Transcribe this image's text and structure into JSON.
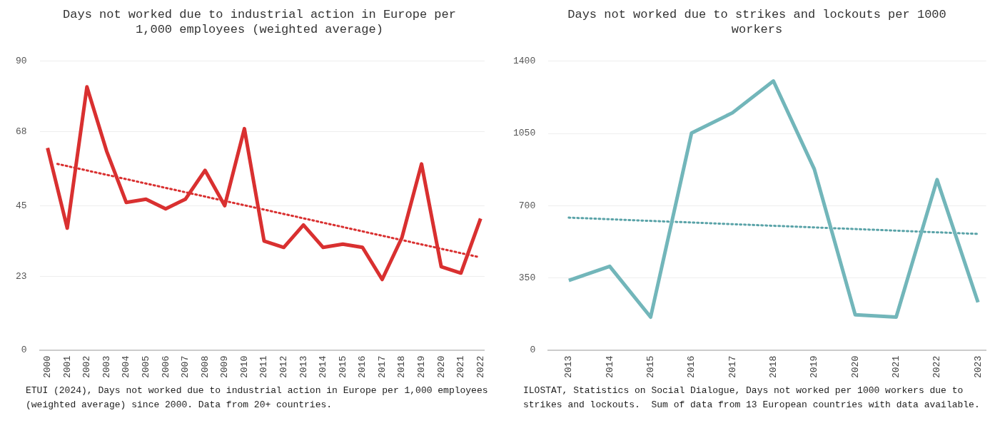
{
  "chart_data": [
    {
      "type": "line",
      "title": "Days not worked due to industrial action in Europe per 1,000 employees (weighted average)",
      "x": [
        2000,
        2001,
        2002,
        2003,
        2004,
        2005,
        2006,
        2007,
        2008,
        2009,
        2010,
        2011,
        2012,
        2013,
        2014,
        2015,
        2016,
        2017,
        2018,
        2019,
        2020,
        2021,
        2022
      ],
      "series": [
        {
          "color": "#d93030",
          "values": [
            63,
            38,
            82,
            62,
            46,
            47,
            44,
            47,
            56,
            45,
            69,
            34,
            32,
            39,
            32,
            33,
            32,
            22,
            35,
            58,
            26,
            24,
            41
          ]
        },
        {
          "type": "line",
          "color": "#d93030",
          "line_style": "dotted",
          "x": [
            2000.5,
            2021.9
          ],
          "values": [
            58,
            29
          ]
        }
      ],
      "xlim": [
        1999.6,
        2022.2
      ],
      "xticks": [
        2000,
        2001,
        2002,
        2003,
        2004,
        2005,
        2006,
        2007,
        2008,
        2009,
        2010,
        2011,
        2012,
        2013,
        2014,
        2015,
        2016,
        2017,
        2018,
        2019,
        2020,
        2021,
        2022
      ],
      "ylim": [
        0,
        90
      ],
      "yticks": [
        0,
        23,
        45,
        68,
        90
      ],
      "grid": "y",
      "legend": false,
      "marker": "none",
      "line_style": "solid",
      "annotations": [
        "ETUI (2024), Days not worked due to industrial action in Europe per 1,000 employees (weighted average) since 2000. Data from 20+ countries."
      ]
    },
    {
      "type": "line",
      "title": "Days not worked due to strikes and lockouts per 1000 workers",
      "x": [
        2013,
        2014,
        2015,
        2016,
        2017,
        2018,
        2019,
        2020,
        2021,
        2022,
        2023
      ],
      "series": [
        {
          "color": "#72b6ba",
          "values": [
            338,
            406,
            160,
            1052,
            1150,
            1304,
            877,
            171,
            160,
            826,
            232
          ]
        },
        {
          "type": "line",
          "color": "#5aa3a8",
          "line_style": "dotted",
          "x": [
            2013,
            2023
          ],
          "values": [
            642,
            563
          ]
        }
      ],
      "xlim": [
        2012.5,
        2023.2
      ],
      "xticks": [
        2013,
        2014,
        2015,
        2016,
        2017,
        2018,
        2019,
        2020,
        2021,
        2022,
        2023
      ],
      "ylim": [
        0,
        1400
      ],
      "yticks": [
        0,
        350,
        700,
        1050,
        1400
      ],
      "grid": "y",
      "legend": false,
      "marker": "none",
      "line_style": "solid",
      "annotations": [
        "ILOSTAT, Statistics on Social Dialogue, Days not worked per 1000 workers due to strikes and lockouts.  Sum of data from 13 European countries with data available."
      ]
    }
  ]
}
